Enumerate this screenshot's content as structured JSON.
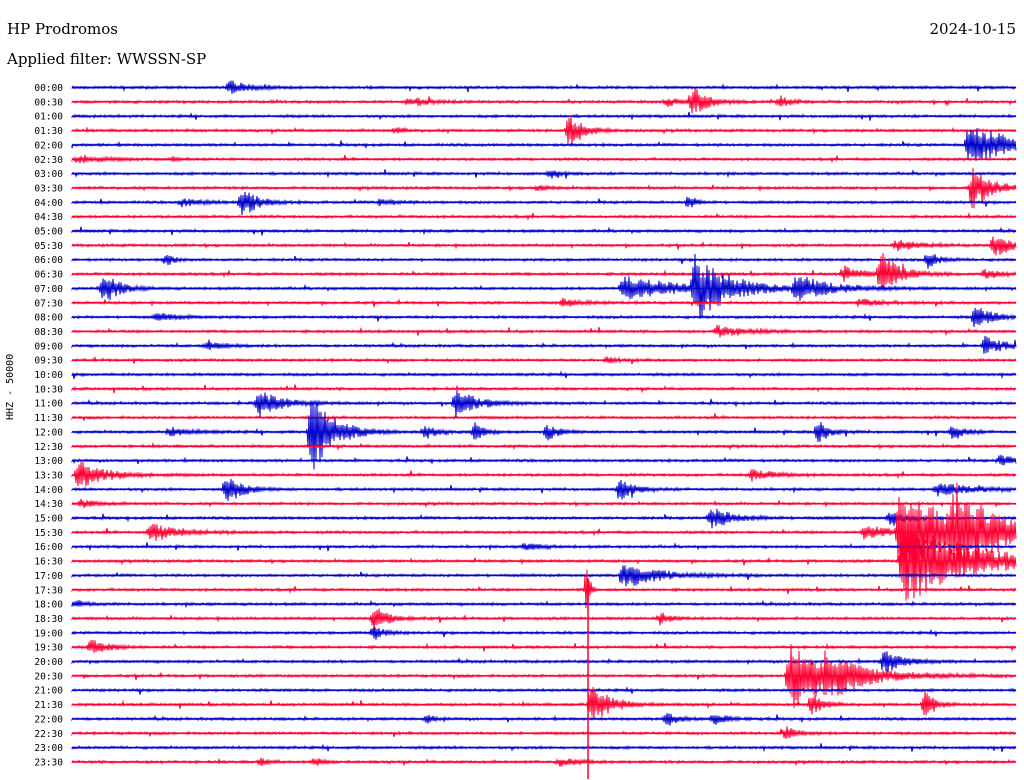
{
  "header": {
    "station": "HP Prodromos",
    "date": "2024-10-15",
    "filter": "Applied filter: WWSSN-SP"
  },
  "axis": {
    "channel_label": "HHZ - 50000"
  },
  "colors": {
    "even_trace": "#0000cc",
    "odd_trace": "#ff0033"
  },
  "chart_data": {
    "type": "line",
    "ylabel": "HHZ - 50000",
    "trace_rows": [
      "00:00",
      "00:30",
      "01:00",
      "01:30",
      "02:00",
      "02:30",
      "03:00",
      "03:30",
      "04:00",
      "04:30",
      "05:00",
      "05:30",
      "06:00",
      "06:30",
      "07:00",
      "07:30",
      "08:00",
      "08:30",
      "09:00",
      "09:30",
      "10:00",
      "10:30",
      "11:00",
      "11:30",
      "12:00",
      "12:30",
      "13:00",
      "13:30",
      "14:00",
      "14:30",
      "15:00",
      "15:30",
      "16:00",
      "16:30",
      "17:00",
      "17:30",
      "18:00",
      "18:30",
      "19:00",
      "19:30",
      "20:00",
      "20:30",
      "21:00",
      "21:30",
      "22:00",
      "22:30",
      "23:00",
      "23:30"
    ],
    "row_minutes": 30,
    "events": [
      {
        "row": 0,
        "minute": 5.0,
        "amp": 0.5,
        "dur": 1.0
      },
      {
        "row": 1,
        "minute": 10.7,
        "amp": 0.35,
        "dur": 1.0
      },
      {
        "row": 1,
        "minute": 18.9,
        "amp": 0.3,
        "dur": 0.8
      },
      {
        "row": 1,
        "minute": 19.7,
        "amp": 1.1,
        "dur": 0.8
      },
      {
        "row": 1,
        "minute": 22.5,
        "amp": 0.4,
        "dur": 0.6
      },
      {
        "row": 3,
        "minute": 10.3,
        "amp": 0.2,
        "dur": 0.5
      },
      {
        "row": 3,
        "minute": 15.8,
        "amp": 1.3,
        "dur": 0.8
      },
      {
        "row": 4,
        "minute": 28.5,
        "amp": 1.5,
        "dur": 2.5
      },
      {
        "row": 5,
        "minute": 0.2,
        "amp": 0.3,
        "dur": 1.2
      },
      {
        "row": 5,
        "minute": 3.2,
        "amp": 0.15,
        "dur": 0.4
      },
      {
        "row": 6,
        "minute": 15.2,
        "amp": 0.3,
        "dur": 0.5
      },
      {
        "row": 7,
        "minute": 14.8,
        "amp": 0.2,
        "dur": 0.5
      },
      {
        "row": 7,
        "minute": 28.6,
        "amp": 1.5,
        "dur": 1.0
      },
      {
        "row": 8,
        "minute": 3.5,
        "amp": 0.3,
        "dur": 1.0
      },
      {
        "row": 8,
        "minute": 5.4,
        "amp": 1.2,
        "dur": 0.8
      },
      {
        "row": 8,
        "minute": 9.8,
        "amp": 0.25,
        "dur": 0.8
      },
      {
        "row": 8,
        "minute": 19.6,
        "amp": 0.5,
        "dur": 0.4
      },
      {
        "row": 11,
        "minute": 29.3,
        "amp": 0.8,
        "dur": 1.0
      },
      {
        "row": 11,
        "minute": 26.2,
        "amp": 0.4,
        "dur": 1.2
      },
      {
        "row": 12,
        "minute": 3.0,
        "amp": 0.5,
        "dur": 0.4
      },
      {
        "row": 12,
        "minute": 27.2,
        "amp": 0.6,
        "dur": 0.6
      },
      {
        "row": 13,
        "minute": 24.5,
        "amp": 0.6,
        "dur": 1.0
      },
      {
        "row": 13,
        "minute": 25.7,
        "amp": 1.6,
        "dur": 1.0
      },
      {
        "row": 13,
        "minute": 29.0,
        "amp": 0.3,
        "dur": 1.0
      },
      {
        "row": 14,
        "minute": 1.0,
        "amp": 1.2,
        "dur": 0.8
      },
      {
        "row": 14,
        "minute": 17.5,
        "amp": 1.0,
        "dur": 2.8
      },
      {
        "row": 14,
        "minute": 19.8,
        "amp": 2.2,
        "dur": 1.8
      },
      {
        "row": 14,
        "minute": 23.0,
        "amp": 0.9,
        "dur": 1.8
      },
      {
        "row": 15,
        "minute": 15.6,
        "amp": 0.3,
        "dur": 1.0
      },
      {
        "row": 15,
        "minute": 25.0,
        "amp": 0.3,
        "dur": 1.2
      },
      {
        "row": 16,
        "minute": 2.7,
        "amp": 0.25,
        "dur": 1.2
      },
      {
        "row": 16,
        "minute": 28.7,
        "amp": 0.8,
        "dur": 1.0
      },
      {
        "row": 17,
        "minute": 20.5,
        "amp": 0.4,
        "dur": 1.5
      },
      {
        "row": 18,
        "minute": 4.3,
        "amp": 0.4,
        "dur": 0.8
      },
      {
        "row": 18,
        "minute": 29.0,
        "amp": 0.7,
        "dur": 1.0
      },
      {
        "row": 19,
        "minute": 17.0,
        "amp": 0.2,
        "dur": 0.6
      },
      {
        "row": 22,
        "minute": 5.9,
        "amp": 1.0,
        "dur": 1.2
      },
      {
        "row": 22,
        "minute": 12.2,
        "amp": 1.0,
        "dur": 1.2
      },
      {
        "row": 24,
        "minute": 3.1,
        "amp": 0.3,
        "dur": 1.2
      },
      {
        "row": 24,
        "minute": 7.6,
        "amp": 3.0,
        "dur": 1.2
      },
      {
        "row": 24,
        "minute": 11.2,
        "amp": 0.6,
        "dur": 0.6
      },
      {
        "row": 24,
        "minute": 12.8,
        "amp": 0.6,
        "dur": 0.6
      },
      {
        "row": 24,
        "minute": 15.1,
        "amp": 0.6,
        "dur": 0.6
      },
      {
        "row": 24,
        "minute": 23.7,
        "amp": 0.9,
        "dur": 0.6
      },
      {
        "row": 24,
        "minute": 28.0,
        "amp": 0.6,
        "dur": 0.6
      },
      {
        "row": 26,
        "minute": 29.5,
        "amp": 0.4,
        "dur": 1.0
      },
      {
        "row": 27,
        "minute": 0.2,
        "amp": 1.0,
        "dur": 1.5
      },
      {
        "row": 27,
        "minute": 21.6,
        "amp": 0.4,
        "dur": 1.2
      },
      {
        "row": 28,
        "minute": 4.9,
        "amp": 1.2,
        "dur": 0.8
      },
      {
        "row": 28,
        "minute": 17.4,
        "amp": 0.8,
        "dur": 0.8
      },
      {
        "row": 28,
        "minute": 27.5,
        "amp": 0.5,
        "dur": 1.8
      },
      {
        "row": 29,
        "minute": 0.3,
        "amp": 0.3,
        "dur": 0.8
      },
      {
        "row": 30,
        "minute": 20.3,
        "amp": 0.8,
        "dur": 1.2
      },
      {
        "row": 30,
        "minute": 26.0,
        "amp": 0.6,
        "dur": 0.8
      },
      {
        "row": 31,
        "minute": 2.5,
        "amp": 0.7,
        "dur": 1.5
      },
      {
        "row": 31,
        "minute": 25.2,
        "amp": 0.6,
        "dur": 1.2
      },
      {
        "row": 31,
        "minute": 26.3,
        "amp": 3.0,
        "dur": 3.5
      },
      {
        "row": 31,
        "minute": 28.0,
        "amp": 2.5,
        "dur": 2.0
      },
      {
        "row": 32,
        "minute": 14.4,
        "amp": 0.3,
        "dur": 0.8
      },
      {
        "row": 33,
        "minute": 26.4,
        "amp": 3.2,
        "dur": 3.5
      },
      {
        "row": 34,
        "minute": 17.5,
        "amp": 0.9,
        "dur": 2.0
      },
      {
        "row": 35,
        "minute": 16.4,
        "amp": 2.5,
        "dur": 0.1
      },
      {
        "row": 36,
        "minute": 0.1,
        "amp": 0.3,
        "dur": 0.6
      },
      {
        "row": 37,
        "minute": 9.6,
        "amp": 0.9,
        "dur": 0.8
      },
      {
        "row": 37,
        "minute": 18.7,
        "amp": 0.5,
        "dur": 0.5
      },
      {
        "row": 38,
        "minute": 9.6,
        "amp": 0.7,
        "dur": 0.5
      },
      {
        "row": 39,
        "minute": 0.6,
        "amp": 0.5,
        "dur": 1.0
      },
      {
        "row": 40,
        "minute": 25.8,
        "amp": 0.9,
        "dur": 1.0
      },
      {
        "row": 41,
        "minute": 22.8,
        "amp": 2.4,
        "dur": 2.8
      },
      {
        "row": 41,
        "minute": 24.0,
        "amp": 1.0,
        "dur": 1.0
      },
      {
        "row": 43,
        "minute": 16.5,
        "amp": 1.5,
        "dur": 1.0
      },
      {
        "row": 43,
        "minute": 23.5,
        "amp": 0.8,
        "dur": 0.6
      },
      {
        "row": 43,
        "minute": 27.1,
        "amp": 1.2,
        "dur": 0.5
      },
      {
        "row": 44,
        "minute": 11.3,
        "amp": 0.3,
        "dur": 0.4
      },
      {
        "row": 44,
        "minute": 18.9,
        "amp": 0.6,
        "dur": 0.6
      },
      {
        "row": 44,
        "minute": 20.4,
        "amp": 0.4,
        "dur": 0.8
      },
      {
        "row": 45,
        "minute": 22.7,
        "amp": 0.5,
        "dur": 0.6
      },
      {
        "row": 47,
        "minute": 6.0,
        "amp": 0.3,
        "dur": 0.4
      },
      {
        "row": 47,
        "minute": 7.7,
        "amp": 0.3,
        "dur": 0.4
      },
      {
        "row": 47,
        "minute": 15.5,
        "amp": 0.3,
        "dur": 1.0
      }
    ]
  }
}
